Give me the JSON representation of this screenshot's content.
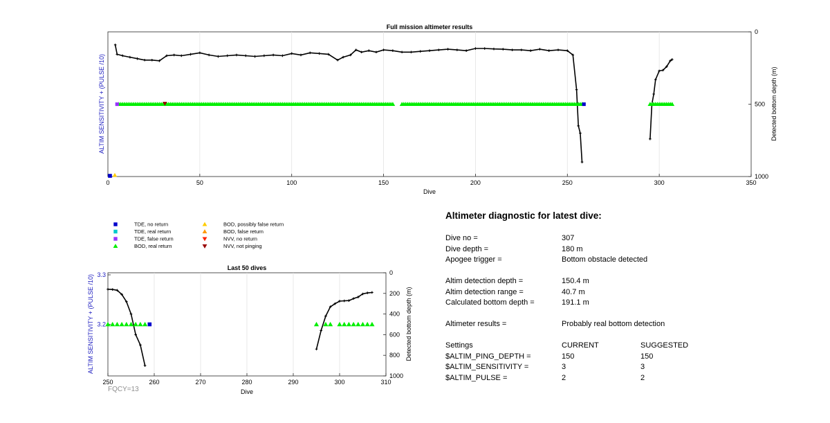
{
  "chart_data": [
    {
      "type": "line",
      "title": "Full mission altimeter results",
      "xlabel": "Dive",
      "ylabel_left": "ALTIM SENSITIVITY + (PULSE /10)",
      "ylabel_right": "Detected bottom depth (m)",
      "xlim": [
        0,
        350
      ],
      "xticks": [
        "0",
        "50",
        "100",
        "150",
        "200",
        "250",
        "300",
        "350"
      ],
      "ylim_right": [
        0,
        1000
      ],
      "yticks_right": [
        "0",
        "500",
        "1000"
      ],
      "grid": "x",
      "series": [
        {
          "name": "",
          "kind": "depth",
          "x": [
            4,
            5,
            8,
            12,
            16,
            20,
            24,
            28,
            32,
            36,
            40,
            45,
            50,
            55,
            60,
            65,
            70,
            75,
            80,
            85,
            90,
            95,
            100,
            105,
            110,
            115,
            120,
            125,
            128,
            132,
            135,
            138,
            142,
            146,
            150,
            155,
            160,
            165,
            170,
            175,
            180,
            185,
            190,
            195,
            200,
            205,
            210,
            215,
            220,
            225,
            230,
            235,
            240,
            245,
            250,
            253,
            255,
            256,
            257,
            258
          ],
          "y": [
            90,
            155,
            165,
            175,
            185,
            195,
            195,
            200,
            165,
            160,
            165,
            155,
            145,
            160,
            170,
            165,
            160,
            165,
            170,
            165,
            160,
            165,
            150,
            160,
            145,
            150,
            155,
            195,
            175,
            160,
            125,
            140,
            130,
            140,
            125,
            130,
            140,
            140,
            135,
            130,
            125,
            120,
            125,
            130,
            115,
            115,
            118,
            120,
            125,
            125,
            130,
            120,
            130,
            125,
            130,
            160,
            400,
            650,
            700,
            900
          ]
        },
        {
          "name": "",
          "kind": "depth",
          "x": [
            295,
            296,
            297,
            298,
            300,
            302,
            304,
            306,
            307
          ],
          "y": [
            740,
            500,
            430,
            330,
            270,
            265,
            240,
            200,
            191
          ]
        },
        {
          "name": "BOD, real return",
          "kind": "markers",
          "color": "#00ee00",
          "x_ranges": [
            [
              6,
              155
            ],
            [
              160,
              258
            ],
            [
              295,
              307
            ]
          ],
          "level": 3.2
        },
        {
          "name": "TDE, no return",
          "kind": "markers",
          "color": "#0000cc",
          "x": [
            259
          ]
        },
        {
          "name": "TDE, false return",
          "kind": "markers",
          "color": "#9933ff",
          "x": [
            5
          ]
        },
        {
          "name": "NVV, not pinging",
          "kind": "markers",
          "color": "#990000",
          "x": [
            31
          ]
        }
      ]
    },
    {
      "type": "line",
      "title": "Last 50 dives",
      "xlabel": "Dive",
      "ylabel_left": "ALTIM SENSITIVITY + (PULSE /10)",
      "ylabel_right": "Detected bottom depth (m)",
      "xlim": [
        250,
        310
      ],
      "xticks": [
        "250",
        "260",
        "270",
        "280",
        "290",
        "300",
        "310"
      ],
      "yticks_left": [
        "3.3",
        "3.2"
      ],
      "ylim_right": [
        0,
        1000
      ],
      "yticks_right": [
        "0",
        "200",
        "400",
        "600",
        "800",
        "1000"
      ],
      "grid": "x",
      "series": [
        {
          "name": "",
          "kind": "depth",
          "x": [
            250,
            251,
            252,
            253,
            254,
            255,
            256,
            257,
            258
          ],
          "y": [
            160,
            162,
            170,
            210,
            280,
            400,
            600,
            700,
            900
          ]
        },
        {
          "name": "",
          "kind": "depth",
          "x": [
            295,
            296,
            297,
            298,
            299,
            300,
            301,
            302,
            303,
            304,
            305,
            306,
            307
          ],
          "y": [
            740,
            560,
            420,
            330,
            300,
            275,
            272,
            270,
            250,
            235,
            205,
            195,
            191
          ]
        },
        {
          "name": "BOD, real return",
          "kind": "markers",
          "color": "#00ee00",
          "x": [
            250,
            251,
            252,
            253,
            254,
            255,
            256,
            257,
            258,
            295,
            297,
            298,
            300,
            301,
            302,
            303,
            304,
            305,
            306,
            307
          ],
          "level": 3.2
        },
        {
          "name": "TDE, no return",
          "kind": "markers",
          "color": "#0000cc",
          "x": [
            259
          ]
        }
      ]
    }
  ],
  "legend": {
    "items": [
      {
        "label": "TDE, no return",
        "shape": "square",
        "color": "#0000cc"
      },
      {
        "label": "TDE, real return",
        "shape": "square",
        "color": "#00cccc"
      },
      {
        "label": "TDE, false return",
        "shape": "square",
        "color": "#9933ff"
      },
      {
        "label": "BOD, real return",
        "shape": "triangle-up",
        "color": "#00ee00"
      },
      {
        "label": "BOD, possibly false return",
        "shape": "triangle-up",
        "color": "#ffcc00"
      },
      {
        "label": "BOD, false return",
        "shape": "triangle-up",
        "color": "#ff9900"
      },
      {
        "label": "NVV, no return",
        "shape": "triangle-down",
        "color": "#ff2200"
      },
      {
        "label": "NVV, not pinging",
        "shape": "triangle-down",
        "color": "#990000"
      }
    ]
  },
  "diagnostic": {
    "title": "Altimeter diagnostic for latest dive:",
    "dive_no_label": "Dive no =",
    "dive_no_value": "307",
    "dive_depth_label": "Dive depth =",
    "dive_depth_value": "180 m",
    "apogee_label": "Apogee trigger =",
    "apogee_value": "Bottom obstacle detected",
    "det_depth_label": "Altim detection depth =",
    "det_depth_value": "150.4 m",
    "det_range_label": "Altim detection range =",
    "det_range_value": "40.7 m",
    "calc_depth_label": "Calculated bottom depth =",
    "calc_depth_value": "191.1 m",
    "results_label": "Altimeter results =",
    "results_value": "Probably real bottom detection",
    "settings_label": "Settings",
    "current_label": "CURRENT",
    "suggested_label": "SUGGESTED",
    "ping_depth_label": "$ALTIM_PING_DEPTH =",
    "ping_depth_current": "150",
    "ping_depth_suggested": "150",
    "sensitivity_label": "$ALTIM_SENSITIVITY =",
    "sensitivity_current": "3",
    "sensitivity_suggested": "3",
    "pulse_label": "$ALTIM_PULSE =",
    "pulse_current": "2",
    "pulse_suggested": "2"
  },
  "footer": {
    "fqcy": "FQCY=13"
  }
}
